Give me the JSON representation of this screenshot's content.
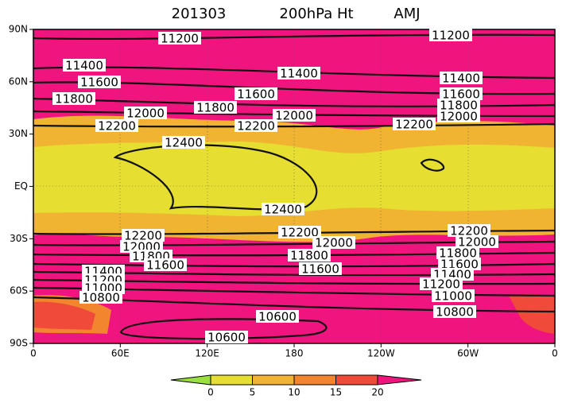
{
  "map": {
    "title": "201303",
    "variable": "200hPa Ht",
    "season": "AMJ",
    "lat_labels": [
      "90N",
      "60N",
      "30N",
      "EQ",
      "30S",
      "60S",
      "90S"
    ],
    "lon_labels": [
      "0",
      "60E",
      "120E",
      "180",
      "120W",
      "60W",
      "0"
    ],
    "contour_labels": [
      "11200",
      "11200",
      "11400",
      "11400",
      "11400",
      "11600",
      "11600",
      "11600",
      "11800",
      "11800",
      "11800",
      "12000",
      "12000",
      "12000",
      "12200",
      "12200",
      "12200",
      "12400",
      "12400",
      "12200",
      "12200",
      "12200",
      "12000",
      "12000",
      "12000",
      "11800",
      "11800",
      "11800",
      "11600",
      "11600",
      "11600",
      "11400",
      "11400",
      "11200",
      "11200",
      "11000",
      "11000",
      "10800",
      "10800",
      "10600",
      "10600"
    ],
    "colorbar": {
      "ticks": [
        0,
        5,
        10,
        15,
        20
      ],
      "colors": [
        "#9ae03c",
        "#e6de30",
        "#f0b432",
        "#f2862e",
        "#f04a3a",
        "#f0147f"
      ]
    }
  }
}
